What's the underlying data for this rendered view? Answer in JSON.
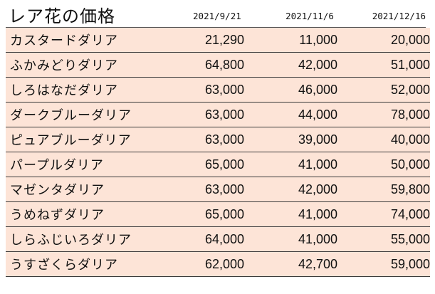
{
  "title": "レア花の価格",
  "dates": [
    "2021/9/21",
    "2021/11/6",
    "2021/12/16"
  ],
  "rows": [
    {
      "name": "カスタードダリア",
      "prices": [
        "21,290",
        "11,000",
        "20,000"
      ]
    },
    {
      "name": "ふかみどりダリア",
      "prices": [
        "64,800",
        "42,000",
        "51,000"
      ]
    },
    {
      "name": "しろはなだダリア",
      "prices": [
        "63,000",
        "46,000",
        "52,000"
      ]
    },
    {
      "name": "ダークブルーダリア",
      "prices": [
        "63,000",
        "44,000",
        "78,000"
      ]
    },
    {
      "name": "ピュアブルーダリア",
      "prices": [
        "63,000",
        "39,000",
        "40,000"
      ]
    },
    {
      "name": "パープルダリア",
      "prices": [
        "65,000",
        "41,000",
        "50,000"
      ]
    },
    {
      "name": "マゼンタダリア",
      "prices": [
        "63,000",
        "42,000",
        "59,800"
      ]
    },
    {
      "name": "うめねずダリア",
      "prices": [
        "65,000",
        "41,000",
        "74,000"
      ]
    },
    {
      "name": "しらふじいろダリア",
      "prices": [
        "64,000",
        "41,000",
        "55,000"
      ]
    },
    {
      "name": "うすざくらダリア",
      "prices": [
        "62,000",
        "42,700",
        "59,000"
      ]
    }
  ],
  "colors": {
    "row_fill": "#fde4d7",
    "grid_line": "#3a3a3a"
  }
}
